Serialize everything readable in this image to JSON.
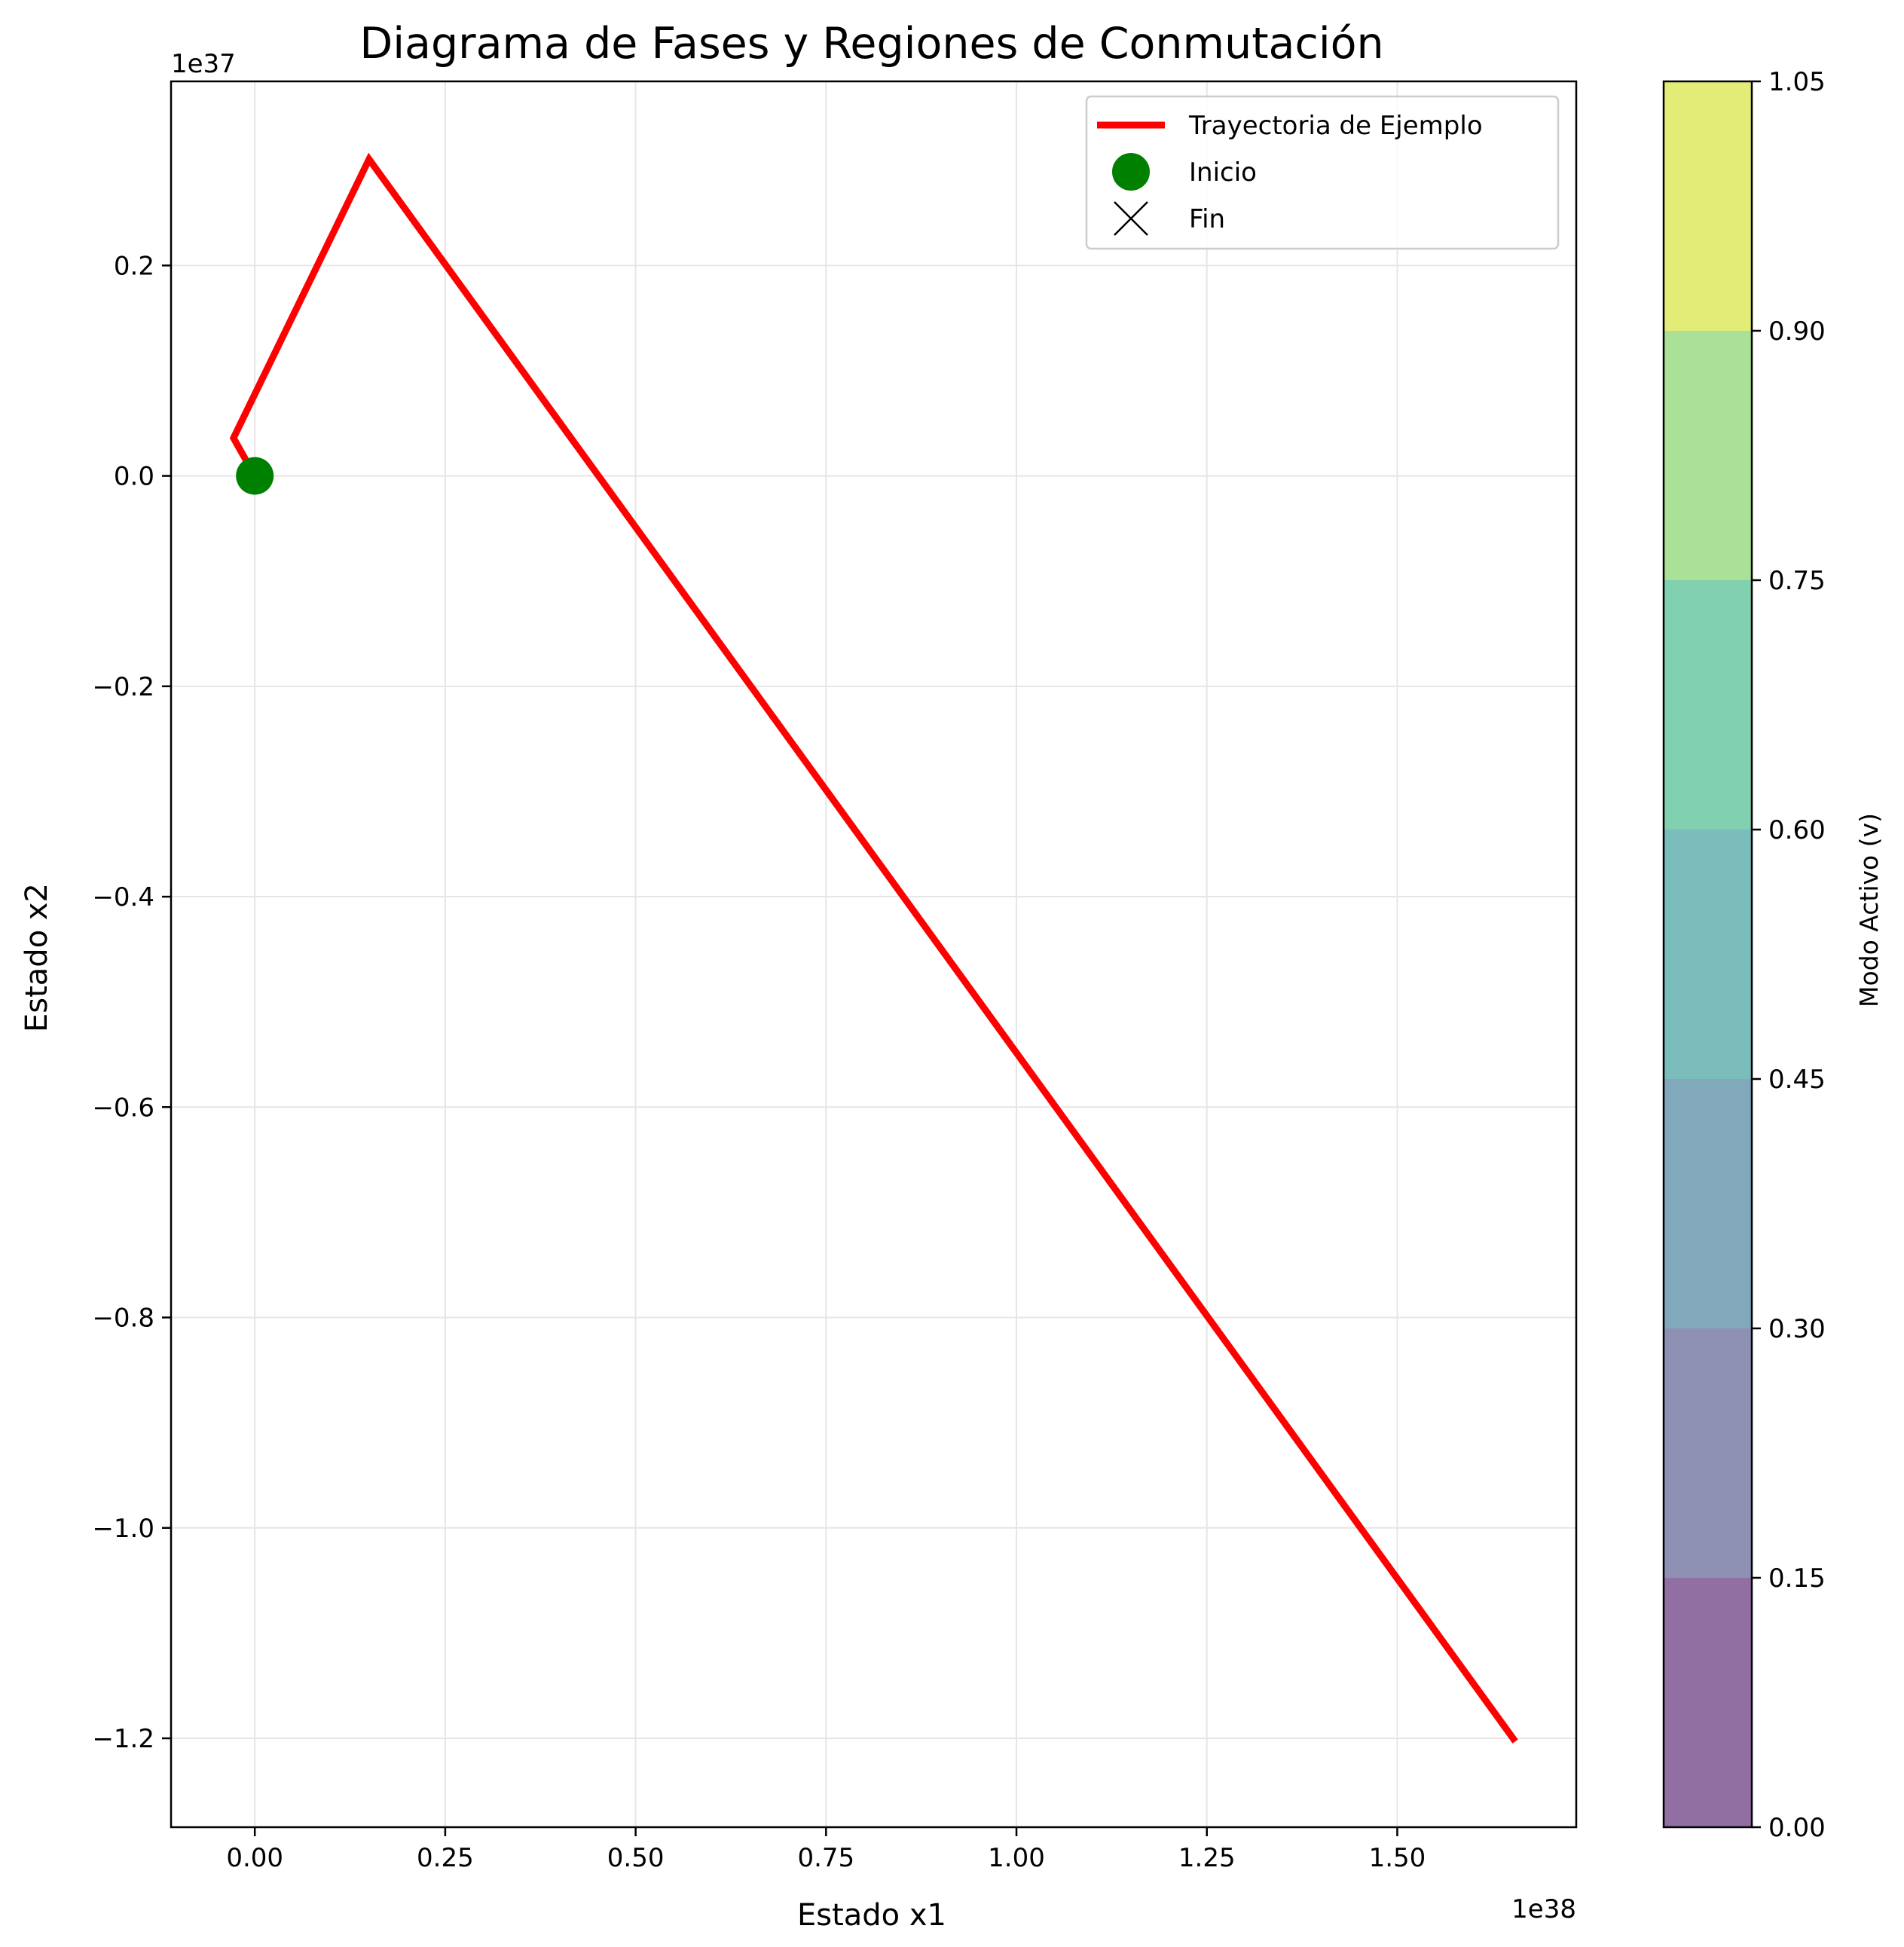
{
  "chart_data": {
    "type": "line",
    "title": "Diagrama de Fases y Regiones de Conmutación",
    "xlabel": "Estado x1",
    "ylabel": "Estado x2",
    "x_offset_text": "1e38",
    "y_offset_text": "1e37",
    "xlim": [
      -1.1e+37,
      1.735e+38
    ],
    "ylim": [
      -1.2845e+37,
      3.75e+36
    ],
    "x_ticks": [
      0,
      2.5e+37,
      5e+37,
      7.5e+37,
      1e+38,
      1.25e+38,
      1.5e+38
    ],
    "x_tick_labels": [
      "0.00",
      "0.25",
      "0.50",
      "0.75",
      "1.00",
      "1.25",
      "1.50"
    ],
    "y_ticks": [
      2e+36,
      0,
      -2e+36,
      -4e+36,
      -6e+36,
      -8e+36,
      -1e+37,
      -1.2e+37
    ],
    "y_tick_labels": [
      "0.2",
      "0.0",
      "−0.2",
      "−0.4",
      "−0.6",
      "−0.8",
      "−1.0",
      "−1.2"
    ],
    "grid": true,
    "legend_position": "upper right",
    "series": [
      {
        "name": "Trayectoria de Ejemplo",
        "color": "#ff0000",
        "x": [
          0,
          -2.8e+36,
          1.5e+37,
          1.655e+38
        ],
        "y": [
          0,
          3.6e+35,
          3.01e+36,
          -1.203e+37
        ]
      }
    ],
    "markers": [
      {
        "name": "Inicio",
        "color": "#008000",
        "shape": "circle",
        "x": 0,
        "y": 0
      },
      {
        "name": "Fin",
        "color": "#000000",
        "shape": "x"
      }
    ],
    "colorbar": {
      "label": "Modo Activo (v)",
      "levels": [
        0.0,
        0.15,
        0.3,
        0.45,
        0.6,
        0.75,
        0.9,
        1.05
      ],
      "tick_labels": [
        "0.00",
        "0.15",
        "0.30",
        "0.45",
        "0.60",
        "0.75",
        "0.90",
        "1.05"
      ],
      "colors": [
        "#916fa3",
        "#8e91b4",
        "#81a8bb",
        "#7bbdbb",
        "#81d0b0",
        "#aae196",
        "#e3ec77"
      ]
    }
  }
}
